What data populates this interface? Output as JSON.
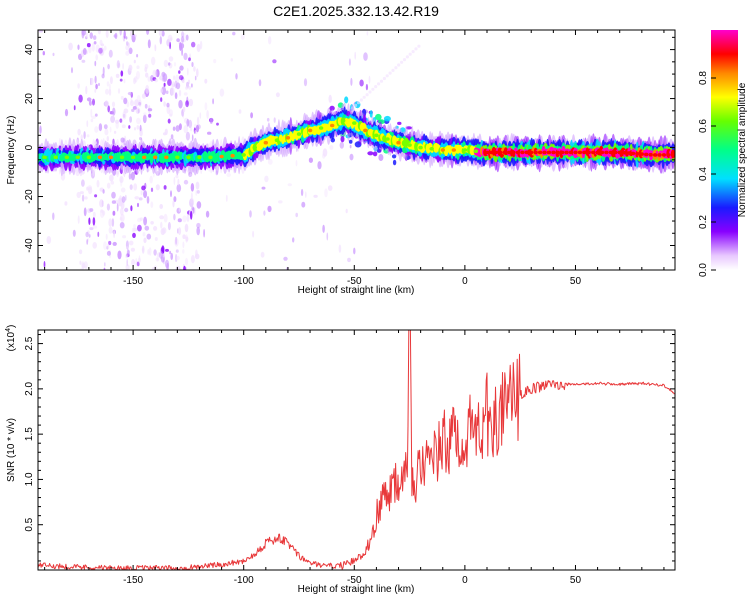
{
  "title": "C2E1.2025.332.13.42.R19",
  "chart_data": [
    {
      "type": "heatmap",
      "title": "C2E1.2025.332.13.42.R19",
      "xlabel": "Height of straight line (km)",
      "ylabel": "Frequency (Hz)",
      "xlim": [
        -193,
        95
      ],
      "ylim": [
        -50,
        48
      ],
      "xticks": [
        -150,
        -100,
        -50,
        0,
        50
      ],
      "yticks": [
        -40,
        -20,
        0,
        20,
        40
      ],
      "ridge": {
        "x": [
          -193,
          -170,
          -150,
          -130,
          -115,
          -100,
          -95,
          -90,
          -80,
          -70,
          -60,
          -55,
          -50,
          -45,
          -40,
          -30,
          -20,
          -10,
          0,
          10,
          30,
          50,
          70,
          85,
          93
        ],
        "y": [
          -4,
          -4,
          -4,
          -4,
          -4,
          -3,
          0,
          2,
          4,
          7,
          9,
          11,
          10,
          7,
          5,
          2,
          0,
          -1,
          -1,
          -2,
          -2,
          -2,
          -2,
          -3,
          -3
        ]
      },
      "colorbar": {
        "label": "Normalized spectral amplitude",
        "ticks": [
          "0.0",
          "0.2",
          "0.4",
          "0.6",
          "0.8"
        ],
        "range": [
          0,
          1
        ]
      }
    },
    {
      "type": "line",
      "xlabel": "Height of straight line (km)",
      "ylabel": "SNR (10 * v/v)",
      "scale_label": "(x10",
      "scale_exp": "4",
      "scale_close": ")",
      "xlim": [
        -193,
        95
      ],
      "ylim": [
        0,
        2.65
      ],
      "xticks": [
        -150,
        -100,
        -50,
        0,
        50
      ],
      "yticks": [
        "0.5",
        "1.0",
        "1.5",
        "2.0",
        "2.5"
      ],
      "color": "#e8383a",
      "series": [
        {
          "name": "SNR",
          "x": [
            -193,
            -180,
            -170,
            -160,
            -150,
            -140,
            -130,
            -120,
            -110,
            -100,
            -95,
            -90,
            -85,
            -80,
            -75,
            -70,
            -65,
            -60,
            -55,
            -50,
            -45,
            -42,
            -40,
            -37,
            -35,
            -32,
            -30,
            -28,
            -26,
            -25,
            -24,
            -22,
            -20,
            -17,
            -15,
            -12,
            -10,
            -7,
            -5,
            -2,
            0,
            3,
            5,
            8,
            10,
            13,
            15,
            18,
            20,
            25,
            30,
            35,
            40,
            50,
            60,
            70,
            80,
            85,
            90,
            95
          ],
          "y": [
            0.05,
            0.04,
            0.03,
            0.02,
            0.02,
            0.02,
            0.02,
            0.04,
            0.06,
            0.1,
            0.18,
            0.3,
            0.35,
            0.3,
            0.15,
            0.08,
            0.05,
            0.05,
            0.05,
            0.1,
            0.2,
            0.4,
            0.6,
            0.8,
            0.85,
            1.0,
            0.95,
            1.2,
            1.4,
            2.65,
            1.1,
            1.0,
            1.25,
            1.15,
            1.2,
            1.3,
            1.4,
            1.35,
            1.5,
            1.45,
            1.55,
            1.5,
            1.55,
            1.65,
            1.7,
            1.6,
            1.8,
            1.7,
            1.85,
            1.92,
            2.0,
            2.03,
            2.05,
            2.05,
            2.06,
            2.05,
            2.06,
            2.05,
            2.04,
            1.95
          ]
        }
      ]
    }
  ]
}
